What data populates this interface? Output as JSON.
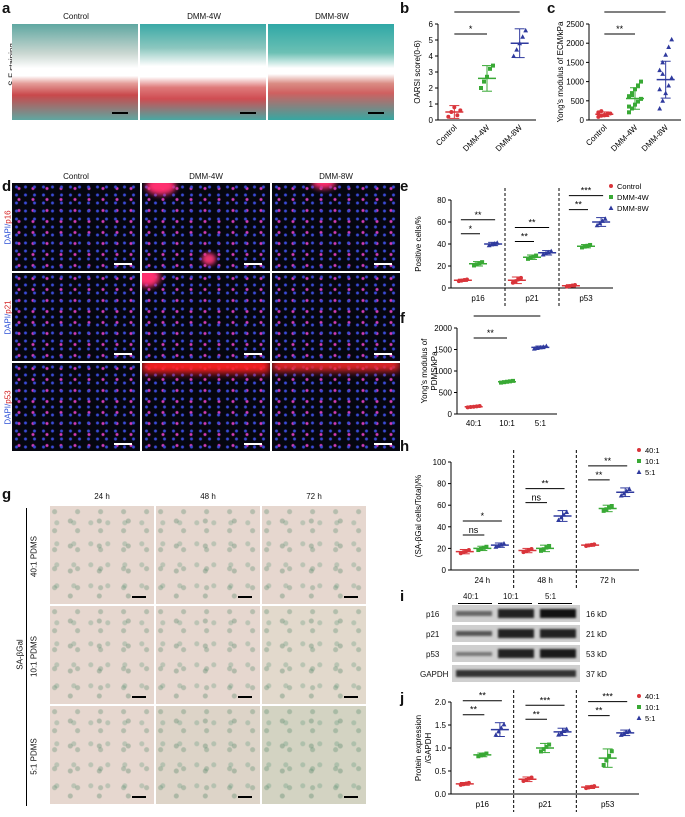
{
  "panel_letters": {
    "a": "a",
    "b": "b",
    "c": "c",
    "d": "d",
    "e": "e",
    "f": "f",
    "g": "g",
    "h": "h",
    "i": "i",
    "j": "j"
  },
  "panel_a": {
    "columns": [
      "Control",
      "DMM-4W",
      "DMM-8W"
    ],
    "row_label": "S-F staining"
  },
  "panel_d": {
    "columns": [
      "Control",
      "DMM-4W",
      "DMM-8W"
    ],
    "rows": [
      {
        "dapi": "DAPI/",
        "marker": "p16"
      },
      {
        "dapi": "DAPI/",
        "marker": "p21"
      },
      {
        "dapi": "DAPI/",
        "marker": "p53"
      }
    ]
  },
  "panel_g": {
    "columns": [
      "24 h",
      "48 h",
      "72 h"
    ],
    "rows": [
      "40:1 PDMS",
      "10:1 PDMS",
      "5:1 PDMS"
    ],
    "side_label": "SA-βGal"
  },
  "panel_i": {
    "header": [
      "40:1",
      "10:1",
      "5:1"
    ],
    "bands": [
      {
        "name": "p16",
        "kd": "16 kD"
      },
      {
        "name": "p21",
        "kd": "21 kD"
      },
      {
        "name": "p53",
        "kd": "53 kD"
      },
      {
        "name": "GAPDH",
        "kd": "37 kD"
      }
    ]
  },
  "colors": {
    "control": "#d9343a",
    "dmm4w": "#39a935",
    "dmm8w": "#2f3a9e",
    "fluor_red": "#e02020",
    "fluor_blue": "#3a4ad6",
    "dapi_text": "#2b4fd6",
    "marker_text": "#d42020"
  },
  "chart_data": [
    {
      "id": "b",
      "type": "scatter",
      "ylabel": "OARSI score(0-6)",
      "categories": [
        "Control",
        "DMM-4W",
        "DMM-8W"
      ],
      "ylim": [
        0,
        6
      ],
      "yticks": [
        0,
        1,
        2,
        3,
        4,
        5,
        6
      ],
      "means": [
        0.5,
        2.6,
        4.8
      ],
      "sd": [
        0.4,
        0.8,
        0.9
      ],
      "points": [
        [
          0.2,
          0.5,
          0.8,
          0.3,
          0.6
        ],
        [
          2.0,
          2.4,
          2.7,
          3.2,
          3.4
        ],
        [
          4.0,
          4.4,
          4.8,
          5.2,
          5.6
        ]
      ],
      "sig": [
        {
          "from": 0,
          "to": 1,
          "text": "*"
        },
        {
          "from": 0,
          "to": 2,
          "text": "**"
        }
      ]
    },
    {
      "id": "c",
      "type": "scatter",
      "ylabel": "Yong's modulus of ECM/kPa",
      "categories": [
        "Control",
        "DMM-4W",
        "DMM-8W"
      ],
      "ylim": [
        0,
        2500
      ],
      "yticks": [
        0,
        500,
        1000,
        1500,
        2000,
        2500
      ],
      "means": [
        150,
        560,
        1050
      ],
      "sd": [
        60,
        280,
        480
      ],
      "points": [
        [
          80,
          110,
          130,
          150,
          170,
          200,
          230,
          120,
          160
        ],
        [
          200,
          300,
          400,
          480,
          550,
          620,
          700,
          800,
          900,
          1000,
          350,
          650
        ],
        [
          300,
          500,
          700,
          900,
          1100,
          1300,
          1500,
          1700,
          1900,
          2100,
          800,
          1200
        ]
      ],
      "sig": [
        {
          "from": 0,
          "to": 1,
          "text": "**"
        },
        {
          "from": 0,
          "to": 2,
          "text": "**"
        }
      ]
    },
    {
      "id": "e",
      "type": "scatter",
      "ylabel": "Positive cells/%",
      "groups": [
        "p16",
        "p21",
        "p53"
      ],
      "series": [
        {
          "name": "Control"
        },
        {
          "name": "DMM-4W"
        },
        {
          "name": "DMM-8W"
        }
      ],
      "ylim": [
        0,
        80
      ],
      "yticks": [
        0,
        20,
        40,
        60,
        80
      ],
      "means": [
        [
          7,
          22,
          40
        ],
        [
          7,
          28,
          32
        ],
        [
          2,
          38,
          60
        ]
      ],
      "sd": [
        [
          1,
          2,
          1.5
        ],
        [
          3,
          2,
          2
        ],
        [
          1,
          1.5,
          4
        ]
      ],
      "sig": [
        {
          "group": 0,
          "from": 0,
          "to": 1,
          "text": "*"
        },
        {
          "group": 0,
          "from": 0,
          "to": 2,
          "text": "**"
        },
        {
          "group": 1,
          "from": 0,
          "to": 1,
          "text": "**"
        },
        {
          "group": 1,
          "from": 0,
          "to": 2,
          "text": "**"
        },
        {
          "group": 2,
          "from": 0,
          "to": 1,
          "text": "**"
        },
        {
          "group": 2,
          "from": 0,
          "to": 2,
          "text": "***"
        }
      ]
    },
    {
      "id": "f",
      "type": "scatter",
      "ylabel": "Yong's modulus of PDMS/kPa",
      "categories": [
        "40:1",
        "10:1",
        "5:1"
      ],
      "ylim": [
        0,
        2000
      ],
      "yticks": [
        0,
        500,
        1000,
        1500,
        2000
      ],
      "means": [
        170,
        750,
        1550
      ],
      "sd": [
        15,
        20,
        30
      ],
      "sig": [
        {
          "from": 0,
          "to": 1,
          "text": "**"
        },
        {
          "from": 0,
          "to": 2,
          "text": "***"
        }
      ]
    },
    {
      "id": "h",
      "type": "scatter",
      "ylabel": "(SA-βGal cells/Total)/%",
      "groups": [
        "24 h",
        "48 h",
        "72 h"
      ],
      "series": [
        {
          "name": "40:1"
        },
        {
          "name": "10:1"
        },
        {
          "name": "5:1"
        }
      ],
      "ylim": [
        0,
        100
      ],
      "yticks": [
        0,
        20,
        40,
        60,
        80,
        100
      ],
      "means": [
        [
          17,
          20,
          23
        ],
        [
          18,
          20,
          50
        ],
        [
          23,
          57,
          72
        ]
      ],
      "sd": [
        [
          2,
          2,
          2
        ],
        [
          2,
          3,
          5
        ],
        [
          1,
          3,
          4
        ]
      ],
      "sig": [
        {
          "group": 0,
          "from": 0,
          "to": 1,
          "text": "ns"
        },
        {
          "group": 0,
          "from": 0,
          "to": 2,
          "text": "*"
        },
        {
          "group": 1,
          "from": 0,
          "to": 1,
          "text": "ns"
        },
        {
          "group": 1,
          "from": 0,
          "to": 2,
          "text": "**"
        },
        {
          "group": 2,
          "from": 0,
          "to": 1,
          "text": "**"
        },
        {
          "group": 2,
          "from": 0,
          "to": 2,
          "text": "**"
        }
      ]
    },
    {
      "id": "j",
      "type": "scatter",
      "ylabel": "Protein expression /GAPDH",
      "groups": [
        "p16",
        "p21",
        "p53"
      ],
      "series": [
        {
          "name": "40:1"
        },
        {
          "name": "10:1"
        },
        {
          "name": "5:1"
        }
      ],
      "ylim": [
        0,
        2.0
      ],
      "yticks": [
        0,
        0.5,
        1.0,
        1.5,
        2.0
      ],
      "means": [
        [
          0.22,
          0.85,
          1.4
        ],
        [
          0.32,
          1.0,
          1.35
        ],
        [
          0.15,
          0.78,
          1.33
        ]
      ],
      "sd": [
        [
          0.03,
          0.04,
          0.15
        ],
        [
          0.05,
          0.1,
          0.08
        ],
        [
          0.03,
          0.2,
          0.06
        ]
      ],
      "sig": [
        {
          "group": 0,
          "from": 0,
          "to": 1,
          "text": "**"
        },
        {
          "group": 0,
          "from": 0,
          "to": 2,
          "text": "**"
        },
        {
          "group": 1,
          "from": 0,
          "to": 1,
          "text": "**"
        },
        {
          "group": 1,
          "from": 0,
          "to": 2,
          "text": "***"
        },
        {
          "group": 2,
          "from": 0,
          "to": 1,
          "text": "**"
        },
        {
          "group": 2,
          "from": 0,
          "to": 2,
          "text": "***"
        }
      ]
    }
  ]
}
